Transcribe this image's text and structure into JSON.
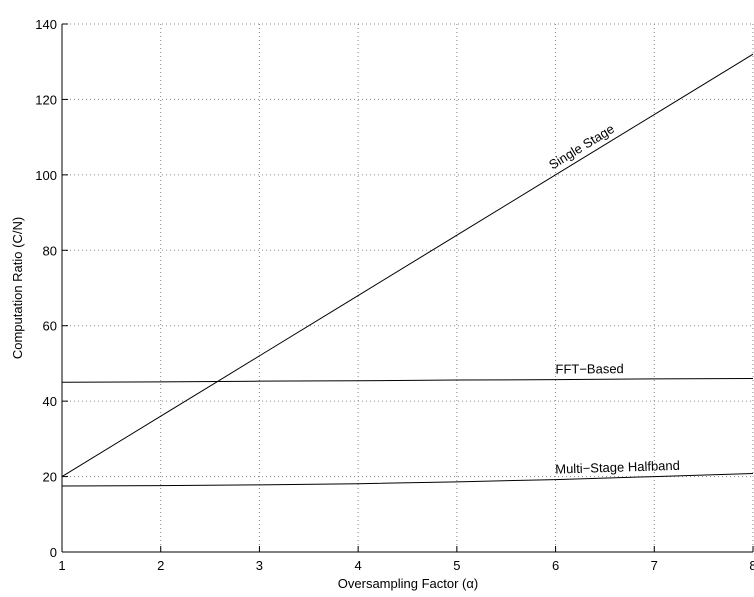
{
  "chart_data": {
    "type": "line",
    "x_label": "Oversampling Factor (α)",
    "y_label": "Computation Ratio (C/N)",
    "x": [
      1,
      2,
      3,
      4,
      5,
      6,
      7,
      8
    ],
    "series": [
      {
        "name": "Single Stage",
        "color": "#000000",
        "values": [
          20,
          36,
          52,
          68,
          84,
          100,
          116,
          132
        ]
      },
      {
        "name": "FFT−Based",
        "color": "#000000",
        "values": [
          45,
          45.1,
          45.3,
          45.4,
          45.6,
          45.7,
          45.9,
          46
        ]
      },
      {
        "name": "Multi−Stage Halfband",
        "color": "#000000",
        "values": [
          17.5,
          17.6,
          17.8,
          18.1,
          18.6,
          19.2,
          20,
          20.8
        ]
      }
    ],
    "xlim": [
      1,
      8
    ],
    "xticks": [
      1,
      2,
      3,
      4,
      5,
      6,
      7,
      8
    ],
    "ylim": [
      0,
      140
    ],
    "yticks": [
      0,
      20,
      40,
      60,
      80,
      100,
      120,
      140
    ],
    "grid": true
  }
}
